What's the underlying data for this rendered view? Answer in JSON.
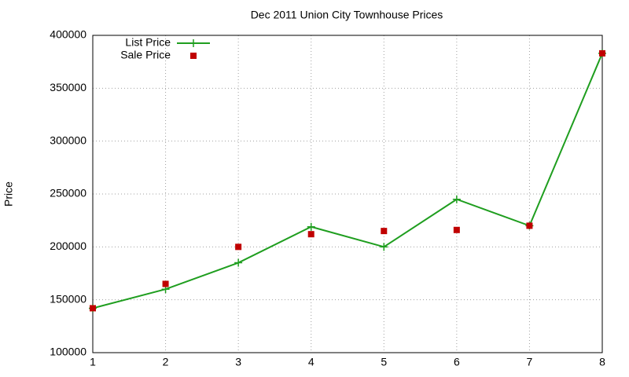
{
  "chart_data": {
    "type": "line",
    "title": "Dec 2011 Union City Townhouse Prices",
    "y_label": "Price",
    "x": [
      1,
      2,
      3,
      4,
      5,
      6,
      7,
      8
    ],
    "series": [
      {
        "name": "List Price",
        "color": "#1f9e1f",
        "mode": "lines+points",
        "values": [
          142000,
          160000,
          185000,
          219000,
          200000,
          245000,
          220000,
          383000
        ]
      },
      {
        "name": "Sale Price",
        "color": "#c00000",
        "mode": "points",
        "values": [
          142000,
          165000,
          200000,
          212000,
          215000,
          216000,
          220000,
          383000
        ]
      }
    ],
    "xlim": [
      1,
      8
    ],
    "xticks": [
      1,
      2,
      3,
      4,
      5,
      6,
      7,
      8
    ],
    "ylim": [
      100000,
      400000
    ],
    "yticks": [
      100000,
      150000,
      200000,
      250000,
      300000,
      350000,
      400000
    ],
    "grid": true,
    "legend": "top-left"
  }
}
